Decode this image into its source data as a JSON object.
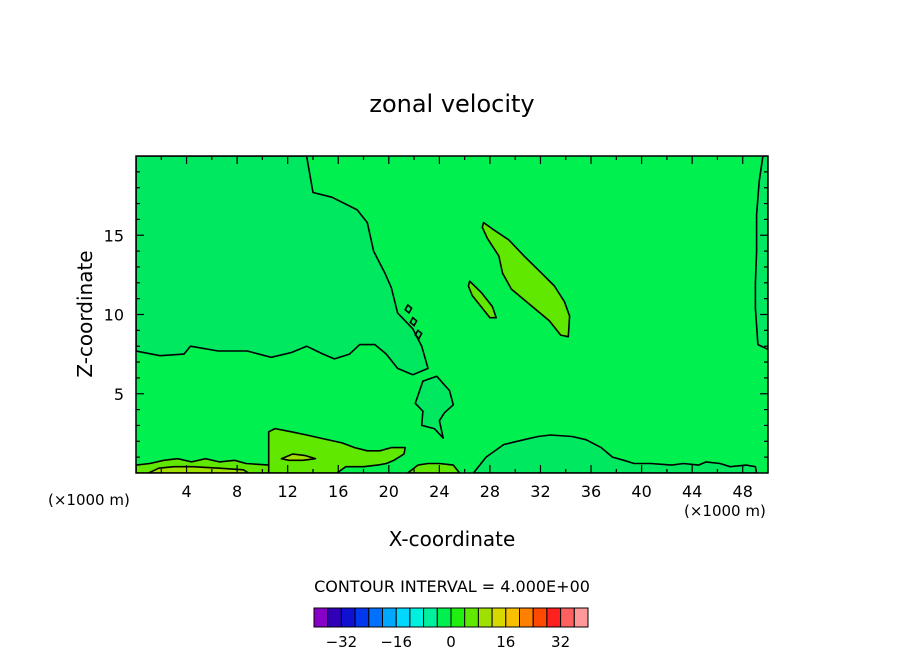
{
  "chart_data": {
    "type": "contour",
    "title": "zonal velocity",
    "xlabel": "X-coordinate",
    "ylabel": "Z-coordinate",
    "x_unit": "(×1000 m)",
    "z_unit": "(×1000 m)",
    "xlim": [
      0,
      50
    ],
    "ylim": [
      0,
      20
    ],
    "x_ticks": [
      4,
      8,
      12,
      16,
      20,
      24,
      28,
      32,
      36,
      40,
      44,
      48
    ],
    "y_ticks": [
      5,
      10,
      15
    ],
    "contour_interval_label": "CONTOUR INTERVAL = 4.000E+00",
    "contour_interval": 4.0,
    "background_level": 0,
    "regions": [
      {
        "level": -4,
        "color": "#00e860",
        "points": [
          [
            13.5,
            20
          ],
          [
            14.0,
            17.7
          ],
          [
            15.5,
            17.4
          ],
          [
            17.5,
            16.6
          ],
          [
            18.3,
            15.8
          ],
          [
            18.8,
            14.0
          ],
          [
            19.7,
            12.6
          ],
          [
            20.2,
            11.7
          ],
          [
            20.7,
            10.1
          ],
          [
            21.9,
            9.1
          ],
          [
            22.6,
            8.0
          ],
          [
            23.1,
            6.6
          ],
          [
            21.9,
            6.2
          ],
          [
            20.7,
            6.6
          ],
          [
            19.8,
            7.5
          ],
          [
            18.9,
            8.1
          ],
          [
            17.7,
            8.1
          ],
          [
            16.9,
            7.5
          ],
          [
            15.7,
            7.2
          ],
          [
            14.8,
            7.5
          ],
          [
            13.5,
            8.0
          ],
          [
            12.3,
            7.6
          ],
          [
            10.7,
            7.3
          ],
          [
            8.8,
            7.7
          ],
          [
            6.5,
            7.7
          ],
          [
            4.3,
            8.0
          ],
          [
            3.8,
            7.5
          ],
          [
            1.9,
            7.4
          ],
          [
            0,
            7.7
          ],
          [
            0,
            20
          ]
        ]
      },
      {
        "level": -4,
        "color": "#00e860",
        "points": [
          [
            22.7,
            5.8
          ],
          [
            23.8,
            6.1
          ],
          [
            24.8,
            5.2
          ],
          [
            25.1,
            4.3
          ],
          [
            24.4,
            3.8
          ],
          [
            24.0,
            3.3
          ],
          [
            24.3,
            2.2
          ],
          [
            23.6,
            2.8
          ],
          [
            22.6,
            3.0
          ],
          [
            22.7,
            3.9
          ],
          [
            22.1,
            4.4
          ],
          [
            22.4,
            5.1
          ]
        ]
      },
      {
        "level": -4,
        "color": "#00e860",
        "points": [
          [
            26.7,
            0
          ],
          [
            27.7,
            1.0
          ],
          [
            29.1,
            1.8
          ],
          [
            30.7,
            2.1
          ],
          [
            31.8,
            2.3
          ],
          [
            32.8,
            2.4
          ],
          [
            34.5,
            2.3
          ],
          [
            35.6,
            2.1
          ],
          [
            36.8,
            1.6
          ],
          [
            37.7,
            1.0
          ],
          [
            38.6,
            0.8
          ],
          [
            39.4,
            0.6
          ],
          [
            40.7,
            0.6
          ],
          [
            42.4,
            0.5
          ],
          [
            43.3,
            0.6
          ],
          [
            44.5,
            0.5
          ],
          [
            45.1,
            0.7
          ],
          [
            46.2,
            0.6
          ],
          [
            47.0,
            0.4
          ],
          [
            48.3,
            0.5
          ],
          [
            49.0,
            0.4
          ],
          [
            49.1,
            0
          ]
        ]
      },
      {
        "level": -4,
        "color": "#00e860",
        "points": [
          [
            49.6,
            20
          ],
          [
            49.3,
            18.4
          ],
          [
            49.1,
            16.3
          ],
          [
            49.1,
            14.0
          ],
          [
            49.0,
            12.0
          ],
          [
            49.0,
            10.4
          ],
          [
            49.2,
            8.1
          ],
          [
            50,
            7.8
          ],
          [
            50,
            20
          ]
        ]
      },
      {
        "level": 4,
        "color": "#60e800",
        "points": [
          [
            27.5,
            15.8
          ],
          [
            28.2,
            15.4
          ],
          [
            29.5,
            14.7
          ],
          [
            30.7,
            13.7
          ],
          [
            32.1,
            12.6
          ],
          [
            33.1,
            11.8
          ],
          [
            33.9,
            10.8
          ],
          [
            34.3,
            9.9
          ],
          [
            34.2,
            8.6
          ],
          [
            33.6,
            8.7
          ],
          [
            32.7,
            9.6
          ],
          [
            31.2,
            10.6
          ],
          [
            29.7,
            11.6
          ],
          [
            29.0,
            12.6
          ],
          [
            28.7,
            13.7
          ],
          [
            27.8,
            14.8
          ],
          [
            27.4,
            15.5
          ]
        ]
      },
      {
        "level": 4,
        "color": "#60e800",
        "points": [
          [
            26.4,
            12.1
          ],
          [
            27.3,
            11.4
          ],
          [
            28.2,
            10.5
          ],
          [
            28.5,
            9.8
          ],
          [
            28.0,
            9.8
          ],
          [
            27.3,
            10.5
          ],
          [
            26.6,
            11.2
          ],
          [
            26.3,
            11.8
          ]
        ]
      },
      {
        "level": 4,
        "color": "#60e800",
        "points": [
          [
            10.5,
            0
          ],
          [
            10.5,
            2.6
          ],
          [
            11.0,
            2.8
          ],
          [
            12.3,
            2.6
          ],
          [
            13.5,
            2.4
          ],
          [
            14.6,
            2.2
          ],
          [
            16.3,
            1.9
          ],
          [
            17.3,
            1.6
          ],
          [
            18.3,
            1.4
          ],
          [
            19.3,
            1.4
          ],
          [
            20.2,
            1.6
          ],
          [
            21.3,
            1.6
          ],
          [
            21.2,
            1.2
          ],
          [
            20.4,
            0.8
          ],
          [
            19.8,
            0.6
          ],
          [
            19.1,
            0.5
          ],
          [
            18.0,
            0.4
          ],
          [
            16.6,
            0.4
          ],
          [
            15.9,
            0
          ]
        ]
      },
      {
        "level": 4,
        "color": "#60e800",
        "points": [
          [
            0,
            0
          ],
          [
            0,
            0.5
          ],
          [
            1.1,
            0.6
          ],
          [
            2.2,
            0.8
          ],
          [
            3.3,
            0.9
          ],
          [
            4.4,
            0.7
          ],
          [
            5.5,
            0.9
          ],
          [
            6.6,
            0.7
          ],
          [
            7.8,
            0.8
          ],
          [
            8.7,
            0.6
          ],
          [
            10.5,
            0.5
          ],
          [
            10.5,
            0
          ]
        ]
      },
      {
        "level": 4,
        "color": "#60e800",
        "points": [
          [
            21.5,
            0
          ],
          [
            22.3,
            0.5
          ],
          [
            23.1,
            0.6
          ],
          [
            24.0,
            0.6
          ],
          [
            25.1,
            0.5
          ],
          [
            25.6,
            0
          ]
        ]
      },
      {
        "level": 8,
        "color": "#a0e000",
        "points": [
          [
            1.0,
            0
          ],
          [
            1.8,
            0.3
          ],
          [
            3.0,
            0.4
          ],
          [
            4.5,
            0.4
          ],
          [
            6.6,
            0.3
          ],
          [
            8.5,
            0.2
          ],
          [
            8.9,
            0
          ]
        ]
      },
      {
        "level": 8,
        "color": "#a0e000",
        "points": [
          [
            11.5,
            0.9
          ],
          [
            12.4,
            1.2
          ],
          [
            13.4,
            1.1
          ],
          [
            14.2,
            0.9
          ],
          [
            13.2,
            0.8
          ],
          [
            12.1,
            0.8
          ]
        ]
      }
    ],
    "contour_loops": [
      [
        [
          21.5,
          10.6
        ],
        [
          21.8,
          10.4
        ],
        [
          21.6,
          10.1
        ],
        [
          21.3,
          10.3
        ]
      ],
      [
        [
          21.9,
          9.8
        ],
        [
          22.2,
          9.6
        ],
        [
          22.0,
          9.3
        ],
        [
          21.7,
          9.5
        ]
      ],
      [
        [
          22.3,
          9.0
        ],
        [
          22.6,
          8.8
        ],
        [
          22.4,
          8.5
        ],
        [
          22.1,
          8.7
        ]
      ]
    ],
    "colorbar": {
      "tick_labels": [
        -32,
        -16,
        0,
        16,
        32
      ],
      "levels": [
        -36,
        -32,
        -28,
        -24,
        -20,
        -16,
        -12,
        -8,
        -4,
        0,
        4,
        8,
        12,
        16,
        20,
        24,
        28,
        32,
        36
      ],
      "colors": [
        "#8800c8",
        "#3000b8",
        "#1010d0",
        "#0038f0",
        "#0070ff",
        "#00a8ff",
        "#00d8ff",
        "#00f0e0",
        "#00f0a0",
        "#00f050",
        "#20f010",
        "#60e800",
        "#a0e000",
        "#d8d800",
        "#f8c000",
        "#ff8000",
        "#ff4800",
        "#ff2020",
        "#ff6060",
        "#ff9898"
      ]
    }
  }
}
